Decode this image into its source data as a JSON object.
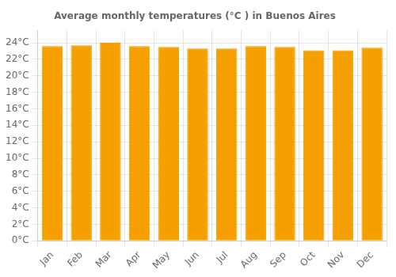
{
  "chart_data": {
    "type": "bar",
    "title": "Average monthly temperatures (°C ) in Buenos Aires",
    "categories": [
      "Jan",
      "Feb",
      "Mar",
      "Apr",
      "May",
      "Jun",
      "Jul",
      "Aug",
      "Sep",
      "Oct",
      "Nov",
      "Dec"
    ],
    "values": [
      23.6,
      23.7,
      24.0,
      23.6,
      23.5,
      23.3,
      23.3,
      23.6,
      23.5,
      23.1,
      23.1,
      23.4
    ],
    "color": "#F5A000",
    "ylim": [
      0,
      25.5
    ],
    "yticks": [
      {
        "value": 0,
        "label": "0°C"
      },
      {
        "value": 2,
        "label": "2°C"
      },
      {
        "value": 4,
        "label": "4°C"
      },
      {
        "value": 6,
        "label": "6°C"
      },
      {
        "value": 8,
        "label": "8°C"
      },
      {
        "value": 10,
        "label": "10°C"
      },
      {
        "value": 12,
        "label": "12°C"
      },
      {
        "value": 14,
        "label": "14°C"
      },
      {
        "value": 16,
        "label": "16°C"
      },
      {
        "value": 18,
        "label": "18°C"
      },
      {
        "value": 20,
        "label": "20°C"
      },
      {
        "value": 22,
        "label": "22°C"
      },
      {
        "value": 24,
        "label": "24°C"
      }
    ],
    "grid": true
  }
}
